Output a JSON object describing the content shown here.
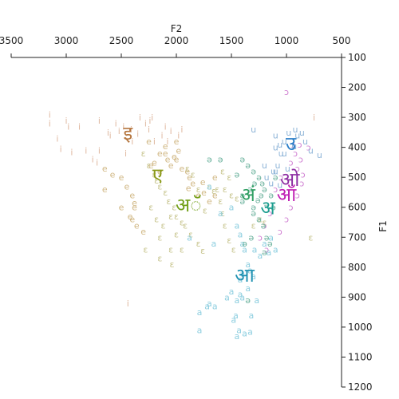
{
  "chart_data": {
    "type": "scatter",
    "title": "",
    "xlabel": "F2",
    "ylabel": "F1",
    "x_axis_position": "top",
    "y_axis_position": "right",
    "x_reversed": true,
    "y_reversed": true,
    "xlim": [
      3500,
      500
    ],
    "ylim": [
      100,
      1200
    ],
    "xticks": [
      3500,
      3000,
      2500,
      2000,
      1500,
      1000,
      500
    ],
    "yticks": [
      100,
      200,
      300,
      400,
      500,
      600,
      700,
      800,
      900,
      1000,
      1100,
      1200
    ],
    "grid": false,
    "legend": "none",
    "point_labels": true,
    "categories": [
      {
        "symbol": "ɔ",
        "color": "#d07fd2",
        "points": [
          [
            1000,
            215
          ],
          [
            880,
            390
          ],
          [
            920,
            420
          ],
          [
            960,
            450
          ],
          [
            900,
            470
          ],
          [
            850,
            490
          ],
          [
            870,
            440
          ],
          [
            940,
            390
          ],
          [
            800,
            400
          ],
          [
            860,
            520
          ],
          [
            900,
            560
          ],
          [
            1050,
            500
          ],
          [
            1100,
            540
          ],
          [
            960,
            600
          ],
          [
            1150,
            620
          ],
          [
            1000,
            640
          ],
          [
            1200,
            660
          ],
          [
            1060,
            680
          ],
          [
            1240,
            700
          ],
          [
            1180,
            740
          ]
        ]
      },
      {
        "symbol": "i",
        "color": "#e0b9a1",
        "points": [
          [
            3150,
            290
          ],
          [
            3150,
            320
          ],
          [
            3000,
            310
          ],
          [
            2980,
            330
          ],
          [
            3080,
            370
          ],
          [
            2820,
            410
          ],
          [
            2760,
            440
          ],
          [
            2720,
            450
          ],
          [
            2700,
            310
          ],
          [
            2620,
            350
          ],
          [
            2550,
            320
          ],
          [
            2480,
            330
          ],
          [
            2410,
            340
          ],
          [
            2330,
            300
          ],
          [
            2280,
            320
          ],
          [
            2250,
            340
          ],
          [
            2220,
            300
          ],
          [
            2130,
            360
          ],
          [
            2080,
            380
          ],
          [
            1980,
            360
          ],
          [
            2460,
            420
          ],
          [
            2600,
            360
          ],
          [
            2400,
            380
          ],
          [
            2240,
            310
          ],
          [
            3050,
            405
          ],
          [
            2880,
            330
          ],
          [
            2950,
            415
          ],
          [
            2100,
            330
          ],
          [
            2520,
            345
          ],
          [
            2350,
            355
          ],
          [
            2440,
            920
          ],
          [
            750,
            300
          ],
          [
            2700,
            410
          ],
          [
            2200,
            380
          ],
          [
            2050,
            345
          ],
          [
            1950,
            340
          ]
        ]
      },
      {
        "symbol": "e",
        "color": "#d1b885",
        "points": [
          [
            2250,
            380
          ],
          [
            2230,
            460
          ],
          [
            2100,
            420
          ],
          [
            2080,
            440
          ],
          [
            2050,
            460
          ],
          [
            2000,
            440
          ],
          [
            1950,
            470
          ],
          [
            1900,
            480
          ],
          [
            1880,
            500
          ],
          [
            1850,
            520
          ],
          [
            1800,
            560
          ],
          [
            1750,
            550
          ],
          [
            1700,
            580
          ],
          [
            1650,
            500
          ],
          [
            1650,
            560
          ],
          [
            2650,
            470
          ],
          [
            2580,
            490
          ],
          [
            2500,
            500
          ],
          [
            2450,
            530
          ],
          [
            2400,
            560
          ],
          [
            2380,
            585
          ],
          [
            2420,
            630
          ],
          [
            2400,
            640
          ],
          [
            2360,
            660
          ],
          [
            2300,
            680
          ],
          [
            2650,
            540
          ],
          [
            2500,
            600
          ],
          [
            2380,
            600
          ],
          [
            2200,
            450
          ],
          [
            2150,
            480
          ],
          [
            2000,
            380
          ],
          [
            1980,
            410
          ],
          [
            2020,
            430
          ],
          [
            2150,
            420
          ],
          [
            2100,
            395
          ],
          [
            1890,
            535
          ],
          [
            1760,
            515
          ]
        ]
      },
      {
        "symbol": "ɛ",
        "color": "#c7c48d",
        "points": [
          [
            2300,
            420
          ],
          [
            2250,
            460
          ],
          [
            2200,
            490
          ],
          [
            2180,
            510
          ],
          [
            2150,
            530
          ],
          [
            2100,
            550
          ],
          [
            2070,
            580
          ],
          [
            2020,
            600
          ],
          [
            2000,
            630
          ],
          [
            1950,
            650
          ],
          [
            1920,
            660
          ],
          [
            1870,
            690
          ],
          [
            1800,
            720
          ],
          [
            1760,
            745
          ],
          [
            2050,
            630
          ],
          [
            2000,
            690
          ],
          [
            2050,
            740
          ],
          [
            2040,
            790
          ],
          [
            1800,
            540
          ],
          [
            1700,
            530
          ],
          [
            1600,
            580
          ],
          [
            1580,
            620
          ],
          [
            1560,
            660
          ],
          [
            1520,
            710
          ],
          [
            1480,
            740
          ],
          [
            1950,
            740
          ],
          [
            2280,
            740
          ],
          [
            2150,
            770
          ],
          [
            2180,
            640
          ],
          [
            2230,
            600
          ],
          [
            2150,
            700
          ],
          [
            2120,
            660
          ],
          [
            1740,
            610
          ],
          [
            1850,
            490
          ],
          [
            1900,
            470
          ],
          [
            1580,
            480
          ],
          [
            1520,
            500
          ],
          [
            1450,
            570
          ],
          [
            1560,
            540
          ],
          [
            1630,
            540
          ],
          [
            1500,
            560
          ],
          [
            1240,
            640
          ],
          [
            1300,
            660
          ],
          [
            780,
            700
          ],
          [
            1200,
            650
          ],
          [
            1660,
            545
          ]
        ]
      },
      {
        "symbol": "a",
        "color": "#8fcfe0",
        "points": [
          [
            1880,
            700
          ],
          [
            1600,
            620
          ],
          [
            1660,
            720
          ],
          [
            1700,
            530
          ],
          [
            1500,
            600
          ],
          [
            1450,
            660
          ],
          [
            1420,
            690
          ],
          [
            1400,
            720
          ],
          [
            1380,
            740
          ],
          [
            1350,
            790
          ],
          [
            1330,
            810
          ],
          [
            1300,
            830
          ],
          [
            1400,
            820
          ],
          [
            1420,
            890
          ],
          [
            1400,
            900
          ],
          [
            1450,
            910
          ],
          [
            1500,
            880
          ],
          [
            1540,
            900
          ],
          [
            1460,
            960
          ],
          [
            1480,
            975
          ],
          [
            1430,
            1010
          ],
          [
            1450,
            1030
          ],
          [
            1380,
            1020
          ],
          [
            1330,
            1015
          ],
          [
            1320,
            960
          ],
          [
            1650,
            930
          ],
          [
            1700,
            920
          ],
          [
            1720,
            930
          ],
          [
            1790,
            950
          ],
          [
            1790,
            1010
          ],
          [
            1350,
            870
          ],
          [
            1270,
            910
          ],
          [
            1420,
            840
          ],
          [
            1290,
            740
          ],
          [
            1240,
            760
          ],
          [
            1200,
            720
          ],
          [
            1160,
            750
          ],
          [
            1140,
            700
          ],
          [
            1100,
            740
          ]
        ]
      },
      {
        "symbol": "u",
        "color": "#8fb5d8",
        "points": [
          [
            1300,
            340
          ],
          [
            1100,
            360
          ],
          [
            1060,
            390
          ],
          [
            1020,
            380
          ],
          [
            980,
            350
          ],
          [
            920,
            340
          ],
          [
            900,
            360
          ],
          [
            860,
            350
          ],
          [
            830,
            380
          ],
          [
            780,
            410
          ],
          [
            1100,
            400
          ],
          [
            1120,
            480
          ],
          [
            1200,
            460
          ],
          [
            1080,
            460
          ],
          [
            1050,
            420
          ],
          [
            1140,
            520
          ],
          [
            1100,
            480
          ],
          [
            990,
            470
          ],
          [
            1020,
            420
          ],
          [
            930,
            395
          ],
          [
            700,
            425
          ],
          [
            1060,
            525
          ],
          [
            1180,
            500
          ]
        ]
      },
      {
        "symbol": "ə",
        "color": "#6db39e",
        "points": [
          [
            1400,
            440
          ],
          [
            1350,
            460
          ],
          [
            1300,
            480
          ],
          [
            1250,
            500
          ],
          [
            1220,
            520
          ],
          [
            1200,
            540
          ],
          [
            1230,
            560
          ],
          [
            1260,
            575
          ],
          [
            1300,
            600
          ],
          [
            1300,
            620
          ],
          [
            1250,
            640
          ],
          [
            1210,
            660
          ],
          [
            1180,
            700
          ],
          [
            1150,
            720
          ],
          [
            1200,
            750
          ],
          [
            1350,
            910
          ],
          [
            1700,
            440
          ],
          [
            1600,
            440
          ],
          [
            1450,
            490
          ],
          [
            1180,
            590
          ],
          [
            1120,
            600
          ],
          [
            1140,
            560
          ],
          [
            1380,
            720
          ],
          [
            1320,
            700
          ],
          [
            1400,
            560
          ],
          [
            1290,
            520
          ],
          [
            1330,
            540
          ],
          [
            1100,
            500
          ],
          [
            1400,
            580
          ]
        ]
      }
    ],
    "labels": [
      {
        "text": "इ",
        "x": 2440,
        "y": 350,
        "color": "#b5763f"
      },
      {
        "text": "ए",
        "x": 2170,
        "y": 490,
        "color": "#8a9a1a"
      },
      {
        "text": "अॅ",
        "x": 1890,
        "y": 590,
        "color": "#73a019"
      },
      {
        "text": "अं",
        "x": 1350,
        "y": 555,
        "color": "#2e9e62"
      },
      {
        "text": "अ",
        "x": 1170,
        "y": 600,
        "color": "#1b9d8f"
      },
      {
        "text": "आ",
        "x": 1380,
        "y": 825,
        "color": "#1a8fb0"
      },
      {
        "text": "उ",
        "x": 960,
        "y": 385,
        "color": "#2a7ec8"
      },
      {
        "text": "ओ",
        "x": 970,
        "y": 505,
        "color": "#8e2ea3"
      },
      {
        "text": "ऑ",
        "x": 1000,
        "y": 555,
        "color": "#c021b5"
      }
    ]
  }
}
